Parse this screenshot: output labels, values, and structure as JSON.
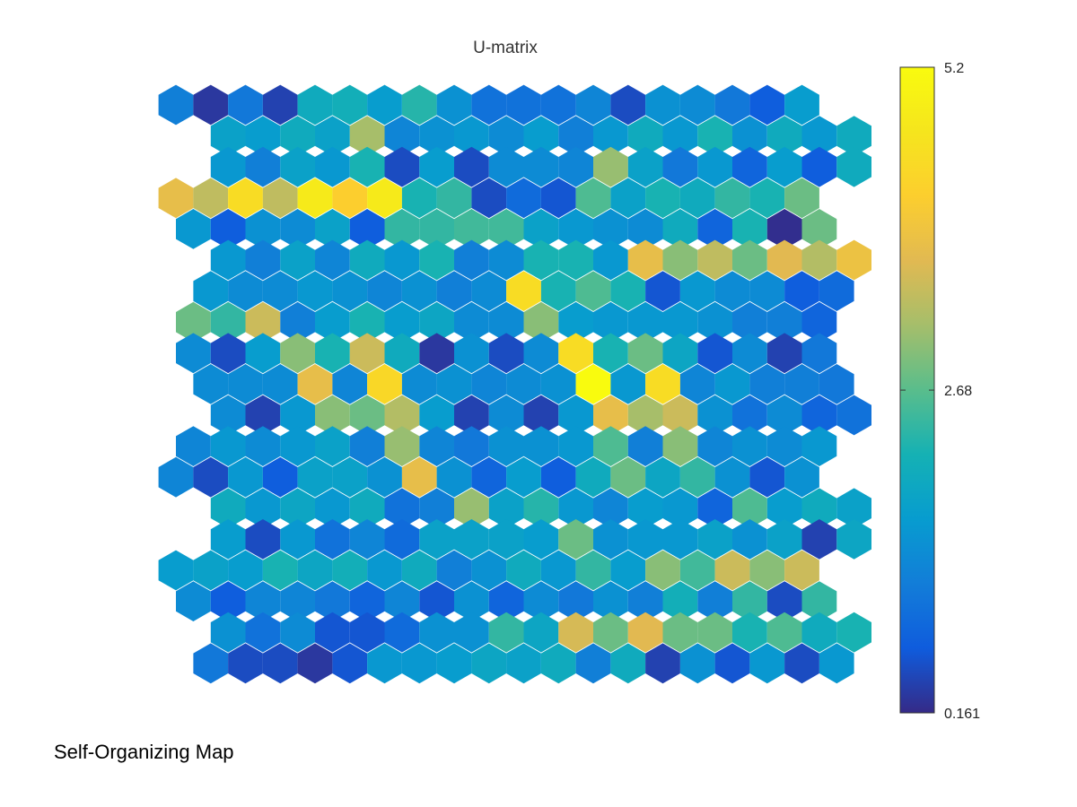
{
  "caption": "Self-Organizing Map",
  "chart_data": {
    "type": "heatmap",
    "grid_shape": "hexagonal",
    "title": "U-matrix",
    "colormap": "parula",
    "rows": 19,
    "cols": 21,
    "colorbar": {
      "min": 0.161,
      "max": 5.2,
      "ticks": [
        {
          "value": 5.2,
          "label": "5.2"
        },
        {
          "value": 2.68,
          "label": "2.68"
        },
        {
          "value": 0.161,
          "label": "0.161"
        }
      ]
    },
    "values": [
      [
        1.2,
        0.3,
        1.1,
        0.4,
        2.0,
        2.1,
        1.7,
        2.3,
        1.5,
        1.0,
        1.0,
        1.0,
        1.3,
        0.5,
        1.5,
        1.4,
        1.1,
        0.7,
        1.7,
        null,
        null
      ],
      [
        null,
        1.8,
        1.7,
        2.0,
        1.8,
        3.2,
        1.3,
        1.5,
        1.6,
        1.4,
        1.7,
        1.2,
        1.6,
        2.0,
        1.6,
        2.2,
        1.5,
        2.0,
        1.6,
        2.0,
        null
      ],
      [
        null,
        1.6,
        1.2,
        1.8,
        1.6,
        2.2,
        0.5,
        1.7,
        0.5,
        1.4,
        1.4,
        1.3,
        3.1,
        1.8,
        1.1,
        1.6,
        0.8,
        1.7,
        0.7,
        2.0,
        null
      ],
      [
        3.8,
        3.4,
        4.5,
        3.4,
        4.8,
        4.2,
        4.8,
        2.2,
        2.4,
        0.5,
        0.9,
        0.6,
        2.6,
        1.8,
        2.2,
        2.0,
        2.4,
        2.2,
        2.8,
        null,
        null
      ],
      [
        1.6,
        0.7,
        1.5,
        1.4,
        1.8,
        0.7,
        2.4,
        2.4,
        2.5,
        2.5,
        1.8,
        1.6,
        1.5,
        1.4,
        2.0,
        0.8,
        2.2,
        0.2,
        2.8,
        null,
        null
      ],
      [
        null,
        1.6,
        1.2,
        1.8,
        1.3,
        2.0,
        1.6,
        2.2,
        1.2,
        1.4,
        2.2,
        2.2,
        1.6,
        3.8,
        3.0,
        3.4,
        2.8,
        3.7,
        3.3,
        3.9,
        null
      ],
      [
        null,
        1.6,
        1.4,
        1.4,
        1.6,
        1.5,
        1.3,
        1.5,
        1.2,
        1.4,
        4.5,
        2.2,
        2.6,
        2.2,
        0.6,
        1.6,
        1.4,
        1.4,
        0.7,
        0.9,
        null
      ],
      [
        2.8,
        2.4,
        3.5,
        1.2,
        1.7,
        2.2,
        1.7,
        1.9,
        1.4,
        1.4,
        3.0,
        1.7,
        1.6,
        1.6,
        1.6,
        1.5,
        1.2,
        1.2,
        0.8,
        null,
        null
      ],
      [
        1.4,
        0.5,
        1.7,
        3.0,
        2.2,
        3.5,
        2.0,
        0.3,
        1.5,
        0.5,
        1.4,
        4.5,
        2.2,
        2.8,
        1.9,
        0.6,
        1.4,
        0.4,
        1.1,
        null,
        null
      ],
      [
        null,
        1.4,
        1.4,
        1.4,
        3.8,
        1.3,
        4.4,
        1.4,
        1.5,
        1.3,
        1.4,
        1.5,
        5.2,
        1.6,
        4.5,
        1.3,
        1.6,
        1.2,
        1.2,
        1.1,
        null
      ],
      [
        null,
        1.4,
        0.4,
        1.6,
        3.0,
        2.8,
        3.3,
        1.7,
        0.4,
        1.4,
        0.4,
        1.6,
        3.8,
        3.2,
        3.5,
        1.5,
        1.0,
        1.4,
        0.8,
        1.0,
        null
      ],
      [
        1.3,
        1.6,
        1.4,
        1.6,
        1.8,
        1.2,
        3.1,
        1.3,
        1.1,
        1.5,
        1.5,
        1.6,
        2.6,
        1.2,
        3.0,
        1.3,
        1.5,
        1.4,
        1.6,
        null,
        null
      ],
      [
        1.3,
        0.5,
        1.6,
        0.7,
        1.8,
        1.8,
        1.5,
        3.8,
        1.5,
        0.8,
        1.7,
        0.7,
        2.0,
        2.8,
        1.9,
        2.4,
        1.5,
        0.6,
        1.5,
        null,
        null
      ],
      [
        null,
        2.0,
        1.6,
        1.9,
        1.6,
        2.0,
        1.0,
        1.2,
        3.1,
        1.8,
        2.3,
        1.6,
        1.3,
        1.7,
        1.6,
        0.8,
        2.6,
        1.7,
        2.0,
        1.8,
        null
      ],
      [
        null,
        1.7,
        0.5,
        1.6,
        1.0,
        1.3,
        0.9,
        1.8,
        1.8,
        1.8,
        1.7,
        2.8,
        1.5,
        1.6,
        1.6,
        1.8,
        1.5,
        1.8,
        0.4,
        1.9,
        null
      ],
      [
        1.7,
        1.8,
        1.7,
        2.2,
        1.9,
        2.1,
        1.6,
        2.0,
        1.2,
        1.5,
        2.0,
        1.6,
        2.4,
        1.7,
        3.0,
        2.5,
        3.5,
        3.0,
        3.5,
        null,
        null
      ],
      [
        1.4,
        0.7,
        1.3,
        1.3,
        1.1,
        0.8,
        1.3,
        0.6,
        1.5,
        0.8,
        1.4,
        1.1,
        1.5,
        1.2,
        2.1,
        1.2,
        2.4,
        0.5,
        2.4,
        null,
        null
      ],
      [
        null,
        1.5,
        1.0,
        1.4,
        0.6,
        0.6,
        0.9,
        1.5,
        1.5,
        2.4,
        1.9,
        3.6,
        2.8,
        3.7,
        2.8,
        2.8,
        2.2,
        2.6,
        2.0,
        2.2,
        null
      ],
      [
        null,
        1.1,
        0.5,
        0.5,
        0.3,
        0.6,
        1.6,
        1.6,
        1.7,
        1.9,
        1.8,
        2.0,
        1.2,
        2.0,
        0.4,
        1.5,
        0.6,
        1.6,
        0.5,
        1.6,
        null
      ]
    ]
  }
}
